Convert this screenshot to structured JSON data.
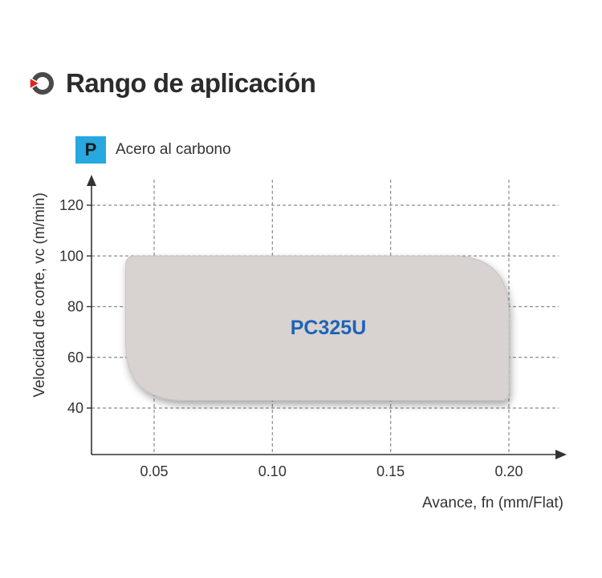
{
  "header": {
    "title": "Rango de aplicación",
    "icon": "target-ring-icon",
    "icon_color": "#e52420"
  },
  "material": {
    "badge": "P",
    "label": "Acero al carbono",
    "badge_color": "#27a8e0"
  },
  "chart_data": {
    "type": "area",
    "xlabel": "Avance, fn (mm/Flat)",
    "ylabel": "Velocidad de corte, vc (m/min)",
    "xlim": [
      0.0,
      0.225
    ],
    "ylim": [
      22,
      130
    ],
    "x_ticks": [
      0.05,
      0.1,
      0.15,
      0.2
    ],
    "x_tick_labels": [
      "0.05",
      "0.10",
      "0.15",
      "0.20"
    ],
    "y_ticks": [
      40,
      60,
      80,
      100,
      120
    ],
    "y_tick_labels": [
      "40",
      "60",
      "80",
      "100",
      "120"
    ],
    "grid": true,
    "regions": [
      {
        "name": "PC325U",
        "fn_min": 0.038,
        "fn_max": 0.2,
        "vc_min": 43,
        "vc_max": 100,
        "color": "#d8d3d0",
        "label_color": "#1e63b8"
      }
    ]
  }
}
